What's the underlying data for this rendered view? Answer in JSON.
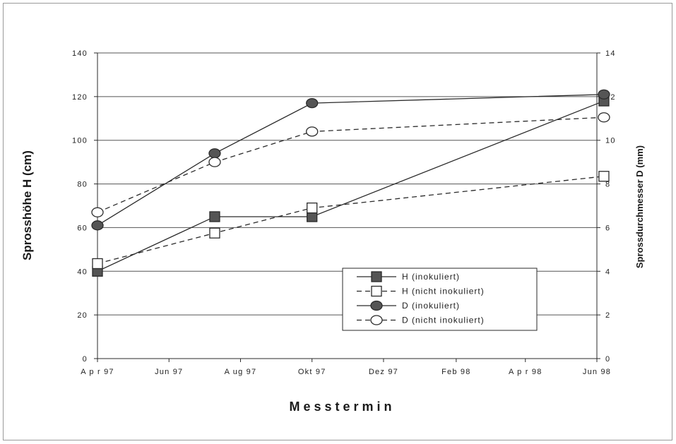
{
  "chart_data": {
    "type": "line",
    "xlabel": "M e s s t e r m i n",
    "ylabel_left": "Sprosshöhe H (cm)",
    "ylabel_right": "Sprossdurchmesser D (mm)",
    "ylim_left": [
      0,
      140
    ],
    "ylim_right": [
      0,
      14
    ],
    "yticks_left": [
      "0",
      "20",
      "40",
      "60",
      "80",
      "100",
      "120",
      "140"
    ],
    "yticks_right": [
      "0",
      "2",
      "4",
      "6",
      "8",
      "10",
      "12",
      "14"
    ],
    "x_ticks": [
      "A p r 97",
      "Jun 97",
      "A ug 97",
      "Okt 97",
      "Dez 97",
      "Feb 98",
      "A p r 98",
      "Jun 98"
    ],
    "x_domain": [
      "1997-04-01",
      "1998-06-01"
    ],
    "x_ticks_dates": [
      "1997-04-01",
      "1997-06-01",
      "1997-08-01",
      "1997-10-01",
      "1997-12-01",
      "1998-02-01",
      "1998-04-01",
      "1998-06-01"
    ],
    "grid": true,
    "legend_position": "bottom-right",
    "series": [
      {
        "name": "H (inokuliert)",
        "axis": "left",
        "line": "solid",
        "marker": "square-filled",
        "x": [
          "1997-04-01",
          "1997-07-10",
          "1997-10-01",
          "1998-06-07"
        ],
        "y": [
          40,
          65,
          65,
          118
        ]
      },
      {
        "name": "H (nicht inokuliert)",
        "axis": "left",
        "line": "dashed",
        "marker": "square-open",
        "x": [
          "1997-04-01",
          "1997-07-10",
          "1997-10-01",
          "1998-06-07"
        ],
        "y": [
          43.5,
          57.5,
          69,
          83.5
        ]
      },
      {
        "name": "D (inokuliert)",
        "axis": "right",
        "line": "solid",
        "marker": "circle-filled",
        "x": [
          "1997-04-01",
          "1997-07-10",
          "1997-10-01",
          "1998-06-07"
        ],
        "y": [
          6.1,
          9.4,
          11.7,
          12.1
        ]
      },
      {
        "name": "D (nicht inokuliert)",
        "axis": "right",
        "line": "dashed",
        "marker": "circle-open",
        "x": [
          "1997-04-01",
          "1997-07-10",
          "1997-10-01",
          "1998-06-07"
        ],
        "y": [
          6.7,
          9.0,
          10.4,
          11.05
        ]
      }
    ]
  },
  "colors": {
    "line": "#2a2a2a",
    "marker_fill": "#555555",
    "grid": "#555555",
    "background": "#ffffff"
  }
}
